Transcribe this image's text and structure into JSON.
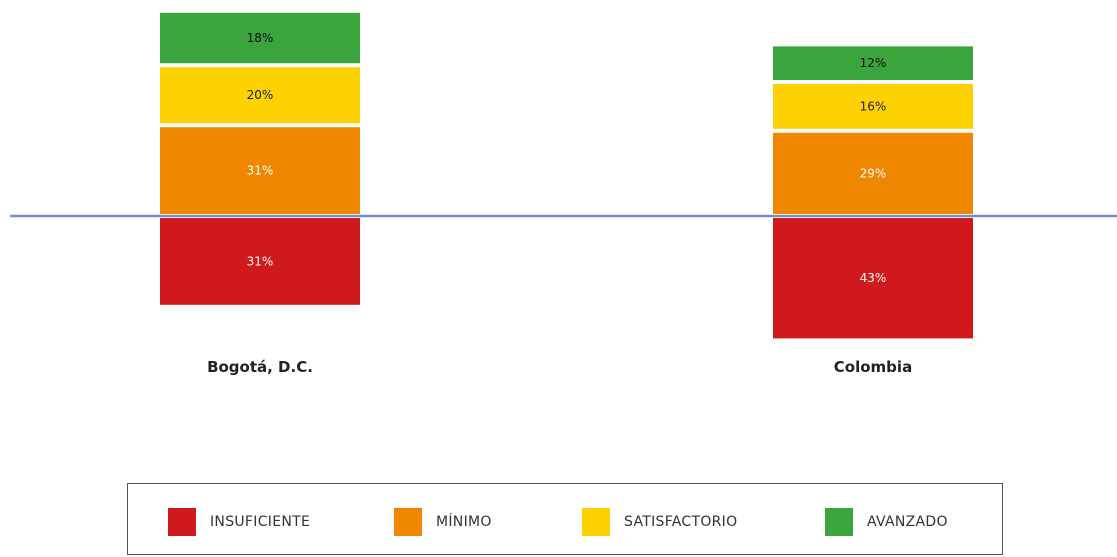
{
  "chart_data": {
    "type": "bar",
    "stacked": true,
    "diverging": true,
    "categories": [
      "Bogotá, D.C.",
      "Colombia"
    ],
    "series": [
      {
        "name": "INSUFICIENTE",
        "color": "#d0191c",
        "values": [
          31,
          43
        ],
        "labels": [
          "31%",
          "43%"
        ]
      },
      {
        "name": "MÍNIMO",
        "color": "#ef8800",
        "values": [
          31,
          29
        ],
        "labels": [
          "31%",
          "29%"
        ]
      },
      {
        "name": "SATISFACTORIO",
        "color": "#fdd200",
        "values": [
          20,
          16
        ],
        "labels": [
          "20%",
          "16%"
        ]
      },
      {
        "name": "AVANZADO",
        "color": "#3aa53c",
        "values": [
          18,
          12
        ],
        "labels": [
          "18%",
          "12%"
        ]
      }
    ],
    "baseline_color": "#6f90c0",
    "legend_position": "bottom"
  },
  "legend": {
    "items": [
      {
        "label": "INSUFICIENTE",
        "color": "#d0191c",
        "icon": "red-square-icon"
      },
      {
        "label": "MÍNIMO",
        "color": "#ef8800",
        "icon": "orange-square-icon"
      },
      {
        "label": "SATISFACTORIO",
        "color": "#fdd200",
        "icon": "yellow-square-icon"
      },
      {
        "label": "AVANZADO",
        "color": "#3aa53c",
        "icon": "green-square-icon"
      }
    ]
  }
}
